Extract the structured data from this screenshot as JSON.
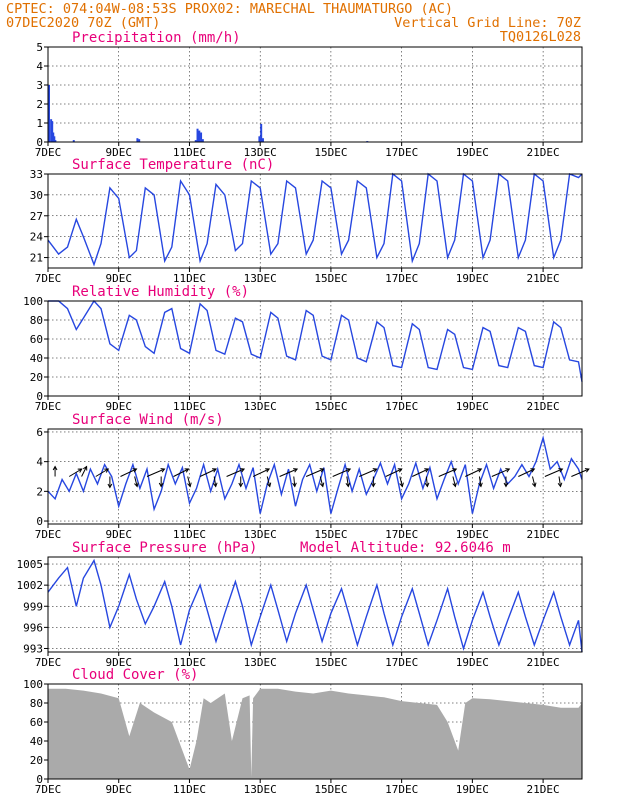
{
  "header": {
    "line1_left": "CPTEC:  074:04W-08:53S  PROX02: MARECHAL THAUMATURGO (AC)",
    "line2_left": "07DEC2020 70Z (GMT)",
    "line2_right": "Vertical Grid Line: 70Z",
    "line3_right": "TQ0126L028"
  },
  "colors": {
    "series": "#2747e0",
    "title": "#e8007a",
    "header": "#e07000",
    "cloud": "#aaaaaa"
  },
  "chart_data": [
    {
      "id": "precip",
      "type": "bar",
      "title": "Precipitation (mm/h)",
      "xticks": [
        "7DEC",
        "9DEC",
        "11DEC",
        "13DEC",
        "15DEC",
        "17DEC",
        "19DEC",
        "21DEC"
      ],
      "x_range_days": [
        7,
        22.1
      ],
      "ylim": [
        0,
        5
      ],
      "yticks": [
        "0",
        "1",
        "2",
        "3",
        "4",
        "5"
      ],
      "x": [
        7.0,
        7.06,
        7.09,
        7.12,
        7.15,
        7.18,
        7.7,
        9.5,
        9.55,
        11.15,
        11.2,
        11.25,
        11.3,
        11.35,
        12.95,
        13.0,
        13.05,
        16.0
      ],
      "values": [
        3.0,
        1.2,
        1.1,
        0.5,
        0.3,
        0.1,
        0.1,
        0.2,
        0.15,
        0.1,
        0.7,
        0.6,
        0.5,
        0.15,
        0.3,
        0.95,
        0.2,
        0.05
      ]
    },
    {
      "id": "temp",
      "type": "line",
      "title": "Surface Temperature (nC)",
      "xticks": [
        "7DEC",
        "9DEC",
        "11DEC",
        "13DEC",
        "15DEC",
        "17DEC",
        "19DEC",
        "21DEC"
      ],
      "x_range_days": [
        7,
        22.1
      ],
      "ylim": [
        19.5,
        33
      ],
      "yticks": [
        "21",
        "24",
        "27",
        "30",
        "33"
      ],
      "x": [
        7.0,
        7.3,
        7.55,
        7.8,
        8.0,
        8.3,
        8.5,
        8.75,
        9.0,
        9.3,
        9.5,
        9.75,
        10.0,
        10.3,
        10.5,
        10.75,
        11.0,
        11.3,
        11.5,
        11.75,
        12.0,
        12.3,
        12.5,
        12.75,
        13.0,
        13.3,
        13.5,
        13.75,
        14.0,
        14.3,
        14.5,
        14.75,
        15.0,
        15.3,
        15.5,
        15.75,
        16.0,
        16.3,
        16.5,
        16.75,
        17.0,
        17.3,
        17.5,
        17.75,
        18.0,
        18.3,
        18.5,
        18.75,
        19.0,
        19.3,
        19.5,
        19.75,
        20.0,
        20.3,
        20.5,
        20.75,
        21.0,
        21.3,
        21.5,
        21.75,
        22.0,
        22.1
      ],
      "values": [
        23.5,
        21.5,
        22.5,
        26.5,
        24.0,
        20.0,
        23.0,
        31.0,
        29.5,
        21.0,
        22.0,
        31.0,
        30.0,
        20.5,
        22.5,
        32.0,
        30.0,
        20.5,
        23.0,
        31.5,
        30.0,
        22.0,
        23.0,
        32.0,
        31.0,
        21.5,
        23.0,
        32.0,
        31.0,
        21.5,
        23.5,
        32.0,
        31.0,
        21.5,
        23.5,
        32.0,
        31.0,
        21.0,
        23.0,
        33.0,
        32.0,
        20.5,
        23.0,
        33.0,
        32.0,
        21.0,
        23.5,
        33.0,
        32.0,
        21.0,
        23.5,
        33.0,
        32.0,
        21.0,
        23.5,
        33.0,
        32.0,
        21.0,
        23.5,
        33.0,
        32.5,
        33.0
      ]
    },
    {
      "id": "rh",
      "type": "line",
      "title": "Relative Humidity (%)",
      "xticks": [
        "7DEC",
        "9DEC",
        "11DEC",
        "13DEC",
        "15DEC",
        "17DEC",
        "19DEC",
        "21DEC"
      ],
      "x_range_days": [
        7,
        22.1
      ],
      "ylim": [
        0,
        100
      ],
      "yticks": [
        "0",
        "20",
        "40",
        "60",
        "80",
        "100"
      ],
      "x": [
        7.0,
        7.3,
        7.55,
        7.8,
        8.0,
        8.3,
        8.5,
        8.75,
        9.0,
        9.3,
        9.5,
        9.75,
        10.0,
        10.3,
        10.5,
        10.75,
        11.0,
        11.3,
        11.5,
        11.75,
        12.0,
        12.3,
        12.5,
        12.75,
        13.0,
        13.3,
        13.5,
        13.75,
        14.0,
        14.3,
        14.5,
        14.75,
        15.0,
        15.3,
        15.5,
        15.75,
        16.0,
        16.3,
        16.5,
        16.75,
        17.0,
        17.3,
        17.5,
        17.75,
        18.0,
        18.3,
        18.5,
        18.75,
        19.0,
        19.3,
        19.5,
        19.75,
        20.0,
        20.3,
        20.5,
        20.75,
        21.0,
        21.3,
        21.5,
        21.75,
        22.0,
        22.1
      ],
      "values": [
        100,
        100,
        92,
        70,
        82,
        100,
        92,
        55,
        48,
        85,
        80,
        52,
        45,
        88,
        92,
        50,
        45,
        97,
        90,
        48,
        44,
        82,
        78,
        44,
        40,
        88,
        82,
        42,
        38,
        90,
        85,
        42,
        38,
        85,
        80,
        40,
        36,
        78,
        72,
        32,
        30,
        76,
        70,
        30,
        28,
        70,
        65,
        30,
        28,
        72,
        68,
        32,
        30,
        72,
        68,
        32,
        30,
        78,
        72,
        38,
        36,
        15
      ]
    },
    {
      "id": "wind",
      "type": "line",
      "title": "Surface Wind (m/s)",
      "xticks": [
        "7DEC",
        "9DEC",
        "11DEC",
        "13DEC",
        "15DEC",
        "17DEC",
        "19DEC",
        "21DEC"
      ],
      "x_range_days": [
        7,
        22.1
      ],
      "ylim": [
        -0.2,
        6.2
      ],
      "yticks": [
        "0",
        "2",
        "4",
        "6"
      ],
      "x": [
        7.0,
        7.2,
        7.4,
        7.6,
        7.8,
        8.0,
        8.2,
        8.4,
        8.6,
        8.8,
        9.0,
        9.2,
        9.4,
        9.6,
        9.8,
        10.0,
        10.2,
        10.4,
        10.6,
        10.8,
        11.0,
        11.2,
        11.4,
        11.6,
        11.8,
        12.0,
        12.2,
        12.4,
        12.6,
        12.8,
        13.0,
        13.2,
        13.4,
        13.6,
        13.8,
        14.0,
        14.2,
        14.4,
        14.6,
        14.8,
        15.0,
        15.2,
        15.4,
        15.6,
        15.8,
        16.0,
        16.2,
        16.4,
        16.6,
        16.8,
        17.0,
        17.2,
        17.4,
        17.6,
        17.8,
        18.0,
        18.2,
        18.4,
        18.6,
        18.8,
        19.0,
        19.2,
        19.4,
        19.6,
        19.8,
        20.0,
        20.2,
        20.4,
        20.6,
        20.8,
        21.0,
        21.2,
        21.4,
        21.6,
        21.8,
        22.0,
        22.1
      ],
      "values": [
        2.0,
        1.5,
        2.8,
        2.0,
        3.2,
        2.0,
        3.5,
        2.5,
        3.8,
        3.0,
        1.0,
        2.5,
        3.8,
        2.2,
        3.5,
        0.8,
        2.0,
        3.8,
        2.5,
        3.6,
        1.2,
        2.2,
        3.8,
        2.0,
        3.5,
        1.5,
        2.5,
        3.8,
        2.2,
        3.6,
        0.5,
        2.5,
        3.8,
        1.8,
        3.5,
        1.0,
        2.8,
        3.8,
        2.0,
        3.6,
        0.5,
        2.2,
        3.8,
        2.0,
        3.5,
        1.8,
        2.8,
        3.9,
        2.5,
        3.8,
        1.5,
        2.5,
        3.9,
        2.2,
        3.6,
        1.5,
        2.8,
        4.0,
        2.5,
        3.8,
        0.5,
        2.5,
        3.8,
        2.2,
        3.5,
        2.5,
        3.0,
        3.8,
        3.0,
        4.0,
        5.6,
        3.5,
        4.0,
        2.8,
        4.2,
        3.5,
        2.8
      ],
      "vector_x": [
        7.2,
        7.6,
        7.95,
        8.35,
        8.75,
        9.05,
        9.45,
        9.8,
        10.2,
        10.55,
        10.95,
        11.3,
        11.7,
        12.05,
        12.45,
        12.8,
        13.2,
        13.55,
        13.95,
        14.3,
        14.7,
        15.05,
        15.45,
        15.8,
        16.2,
        16.55,
        16.95,
        17.3,
        17.7,
        18.05,
        18.45,
        18.8,
        19.2,
        19.55,
        19.95,
        20.3,
        20.7,
        21.05,
        21.45,
        21.8
      ],
      "vector_u": [
        0,
        2.5,
        1,
        2.5,
        0,
        3.2,
        0.5,
        3.5,
        0,
        3.0,
        0.5,
        3.2,
        0.3,
        3.5,
        0,
        3.2,
        0.5,
        3.5,
        0.2,
        3.5,
        0.5,
        3.5,
        0.3,
        3.5,
        0,
        3.2,
        0.5,
        3.2,
        0.2,
        3.5,
        0.5,
        3.2,
        0.3,
        3.5,
        0,
        3.2,
        0.5,
        3.5,
        0.3,
        3.5
      ],
      "vector_v": [
        2.0,
        1.5,
        2.0,
        1.5,
        -2.2,
        1.5,
        -2.0,
        1.5,
        -2.0,
        1.5,
        -2.0,
        1.5,
        -2.0,
        1.5,
        -2.0,
        1.5,
        -2.0,
        1.5,
        -2.0,
        1.5,
        -2.0,
        1.5,
        -2.0,
        1.5,
        -2.0,
        1.5,
        -2.0,
        1.5,
        -2.0,
        1.5,
        -2.0,
        1.5,
        -2.0,
        1.5,
        -2.0,
        1.5,
        -2.0,
        1.5,
        -2.0,
        1.5
      ]
    },
    {
      "id": "pres",
      "type": "line",
      "title": "Surface Pressure (hPa)",
      "annotation": "Model Altitude: 92.6046 m",
      "xticks": [
        "7DEC",
        "9DEC",
        "11DEC",
        "13DEC",
        "15DEC",
        "17DEC",
        "19DEC",
        "21DEC"
      ],
      "x_range_days": [
        7,
        22.1
      ],
      "ylim": [
        992.5,
        1006
      ],
      "yticks": [
        "993",
        "996",
        "999",
        "1002",
        "1005"
      ],
      "x": [
        7.0,
        7.3,
        7.55,
        7.8,
        8.0,
        8.3,
        8.5,
        8.75,
        9.0,
        9.3,
        9.5,
        9.75,
        10.0,
        10.3,
        10.5,
        10.75,
        11.0,
        11.3,
        11.5,
        11.75,
        12.0,
        12.3,
        12.5,
        12.75,
        13.0,
        13.3,
        13.5,
        13.75,
        14.0,
        14.3,
        14.5,
        14.75,
        15.0,
        15.3,
        15.5,
        15.75,
        16.0,
        16.3,
        16.5,
        16.75,
        17.0,
        17.3,
        17.5,
        17.75,
        18.0,
        18.3,
        18.5,
        18.75,
        19.0,
        19.3,
        19.5,
        19.75,
        20.0,
        20.3,
        20.5,
        20.75,
        21.0,
        21.3,
        21.5,
        21.75,
        22.0,
        22.1
      ],
      "values": [
        1001,
        1003,
        1004.5,
        999,
        1003,
        1005.5,
        1002,
        996,
        999,
        1003.5,
        1000,
        996.5,
        999,
        1002.5,
        999,
        993.5,
        998.5,
        1002,
        998.5,
        994,
        998,
        1002.5,
        999,
        993.5,
        997.5,
        1002,
        998.5,
        994,
        998,
        1002,
        998.5,
        994,
        998,
        1001.5,
        998,
        993.5,
        997.5,
        1002,
        998,
        993.5,
        997.5,
        1001.5,
        998,
        993.5,
        997,
        1001.5,
        997.5,
        993,
        997,
        1001,
        997.5,
        993.5,
        997,
        1001,
        997.5,
        993.5,
        997,
        1001,
        997.5,
        993.5,
        997,
        992.5
      ]
    },
    {
      "id": "cloud",
      "type": "area",
      "title": "Cloud Cover (%)",
      "xticks": [
        "7DEC",
        "9DEC",
        "11DEC",
        "13DEC",
        "15DEC",
        "17DEC",
        "19DEC",
        "21DEC"
      ],
      "x_range_days": [
        7,
        22.1
      ],
      "ylim": [
        0,
        100
      ],
      "yticks": [
        "0",
        "20",
        "40",
        "60",
        "80",
        "100"
      ],
      "x": [
        7.0,
        7.5,
        8.0,
        8.5,
        9.0,
        9.3,
        9.6,
        10.0,
        10.5,
        10.8,
        11.0,
        11.2,
        11.4,
        11.6,
        12.0,
        12.2,
        12.5,
        12.7,
        12.75,
        12.8,
        13.0,
        13.5,
        14.0,
        14.5,
        15.0,
        15.5,
        16.0,
        16.5,
        17.0,
        17.5,
        18.0,
        18.3,
        18.6,
        18.8,
        19.0,
        19.5,
        20.0,
        20.5,
        21.0,
        21.5,
        22.0,
        22.1
      ],
      "values": [
        95,
        95,
        93,
        90,
        85,
        45,
        80,
        70,
        60,
        30,
        10,
        40,
        85,
        80,
        90,
        40,
        85,
        88,
        2,
        85,
        95,
        95,
        92,
        90,
        93,
        90,
        88,
        86,
        82,
        80,
        78,
        60,
        30,
        80,
        85,
        84,
        82,
        80,
        78,
        75,
        75,
        80
      ]
    }
  ]
}
